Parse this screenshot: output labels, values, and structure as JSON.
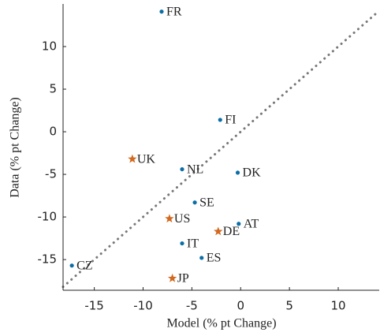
{
  "chart_data": {
    "type": "scatter",
    "xlabel": "Model (% pt Change)",
    "ylabel": "Data (% pt Change)",
    "xlim": [
      -18.2,
      14.2
    ],
    "ylim": [
      -18.6,
      15
    ],
    "xticks": [
      -15,
      -10,
      -5,
      0,
      5,
      10
    ],
    "yticks": [
      -15,
      -10,
      -5,
      0,
      5,
      10
    ],
    "series": [
      {
        "color": "#0b6ea6",
        "marker": "dot",
        "labels": [
          "FR",
          "FI",
          "NL",
          "DK",
          "SE",
          "AT",
          "IT",
          "ES",
          "CZ"
        ],
        "x": [
          -8.1,
          -2.1,
          -6.0,
          -0.3,
          -4.7,
          -0.2,
          -6.0,
          -4.0,
          -17.3
        ],
        "values": [
          14.1,
          1.4,
          -4.4,
          -4.8,
          -8.3,
          -10.8,
          -13.1,
          -14.8,
          -15.7
        ]
      },
      {
        "color": "#d2691e",
        "marker": "star",
        "labels": [
          "UK",
          "US",
          "DE",
          "JP"
        ],
        "x": [
          -11.1,
          -7.3,
          -2.3,
          -7.0
        ],
        "values": [
          -3.2,
          -10.2,
          -11.7,
          -17.2
        ]
      }
    ]
  }
}
